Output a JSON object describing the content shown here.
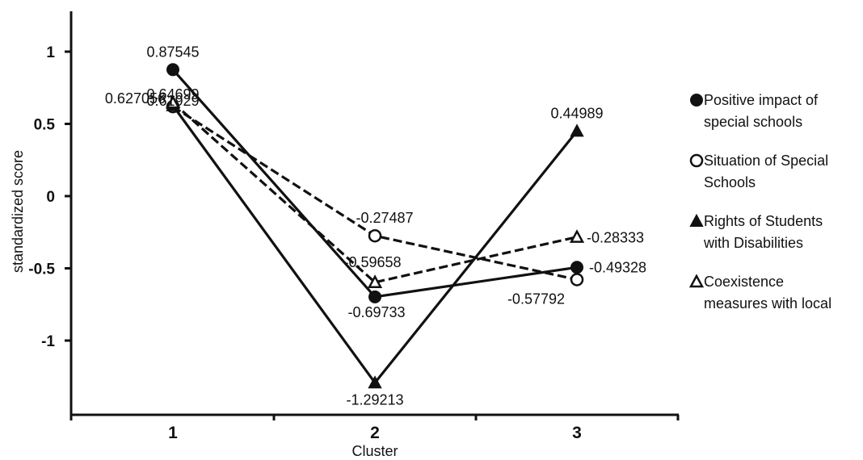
{
  "chart_data": {
    "type": "line",
    "xlabel": "Cluster",
    "ylabel": "standardized score",
    "categories": [
      "1",
      "2",
      "3"
    ],
    "ylim": [
      -1.5,
      1.25
    ],
    "yticks": [
      1,
      0.5,
      0,
      -0.5,
      -1
    ],
    "ytick_labels": [
      "1",
      "0.5",
      "0",
      "-0.5",
      "-1"
    ],
    "grid": false,
    "legend_position": "right",
    "series": [
      {
        "name": "Positive impact of special schools",
        "name_lines": [
          "Positive impact of",
          "special schools"
        ],
        "values": [
          0.87545,
          -0.69733,
          -0.49328
        ],
        "value_labels": [
          "0.87545",
          "-0.69733",
          "-0.49328"
        ],
        "marker": "filled-circle",
        "line": "solid"
      },
      {
        "name": "Situation of Special Schools",
        "name_lines": [
          "Situation of Special",
          "Schools"
        ],
        "values": [
          0.61929,
          -0.27487,
          -0.57792
        ],
        "value_labels": [
          "0.61929",
          "-0.27487",
          "-0.57792"
        ],
        "marker": "open-circle",
        "line": "dashed"
      },
      {
        "name": "Rights of Students with Disabilities",
        "name_lines": [
          "Rights of Students",
          "with Disabilities"
        ],
        "values": [
          0.627056,
          -1.29213,
          0.44989
        ],
        "value_labels": [
          "0.627056",
          "-1.29213",
          "0.44989"
        ],
        "marker": "filled-triangle",
        "line": "solid"
      },
      {
        "name": "Coexistence measures with local",
        "name_lines": [
          "Coexistence",
          "measures with local"
        ],
        "values": [
          0.64699,
          -0.59658,
          -0.28333
        ],
        "value_labels": [
          "0.64699",
          "-0.59658",
          "-0.28333"
        ],
        "marker": "open-triangle",
        "line": "dashed"
      }
    ]
  }
}
